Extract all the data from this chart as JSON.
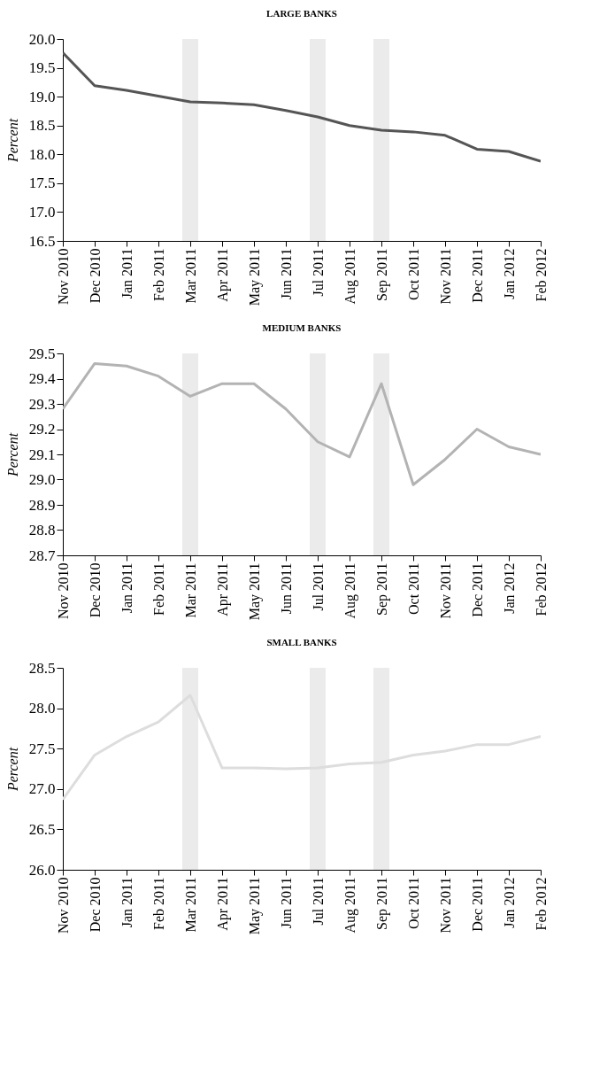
{
  "chart_data": [
    {
      "type": "line",
      "title": "LARGE BANKS",
      "ylabel": "Percent",
      "categories": [
        "Nov 2010",
        "Dec 2010",
        "Jan 2011",
        "Feb 2011",
        "Mar 2011",
        "Apr 2011",
        "May 2011",
        "Jun 2011",
        "Jul 2011",
        "Aug 2011",
        "Sep 2011",
        "Oct 2011",
        "Nov 2011",
        "Dec 2011",
        "Jan 2012",
        "Feb 2012"
      ],
      "series": [
        {
          "color": "#555555",
          "values": [
            19.76,
            19.19,
            19.11,
            19.01,
            18.91,
            18.89,
            18.86,
            18.76,
            18.65,
            18.5,
            18.42,
            18.39,
            18.33,
            18.09,
            18.05,
            17.88
          ]
        }
      ],
      "ylim": [
        16.5,
        20.0
      ],
      "yticks": [
        16.5,
        {
          "value": 17,
          "label": "17.0"
        },
        17.5,
        {
          "value": 18,
          "label": "18.0"
        },
        18.5,
        {
          "value": 19,
          "label": "19.0"
        },
        19.5,
        {
          "value": 20,
          "label": "20.0"
        }
      ],
      "bands": [
        {
          "axis": "x",
          "from": "Mar 2011",
          "to": "Mar 2011",
          "color": "#ebebeb"
        },
        {
          "axis": "x",
          "from": "Jul 2011",
          "to": "Jul 2011",
          "color": "#ebebeb"
        },
        {
          "axis": "x",
          "from": "Sep 2011",
          "to": "Sep 2011",
          "color": "#ebebeb"
        }
      ]
    },
    {
      "type": "line",
      "title": "MEDIUM BANKS",
      "ylabel": "Percent",
      "categories": [
        "Nov 2010",
        "Dec 2010",
        "Jan 2011",
        "Feb 2011",
        "Mar 2011",
        "Apr 2011",
        "May 2011",
        "Jun 2011",
        "Jul 2011",
        "Aug 2011",
        "Sep 2011",
        "Oct 2011",
        "Nov 2011",
        "Dec 2011",
        "Jan 2012",
        "Feb 2012"
      ],
      "series": [
        {
          "color": "#b3b3b3",
          "values": [
            29.28,
            29.46,
            29.45,
            29.41,
            29.33,
            29.38,
            29.38,
            29.28,
            29.15,
            29.09,
            29.38,
            28.98,
            29.08,
            29.2,
            29.13,
            29.1
          ]
        }
      ],
      "ylim": [
        28.7,
        29.5
      ],
      "yticks": [
        28.7,
        28.8,
        28.9,
        {
          "value": 29,
          "label": "29.0"
        },
        29.1,
        29.2,
        29.3,
        29.4,
        29.5
      ],
      "bands": [
        {
          "axis": "x",
          "from": "Mar 2011",
          "to": "Mar 2011",
          "color": "#ebebeb"
        },
        {
          "axis": "x",
          "from": "Jul 2011",
          "to": "Jul 2011",
          "color": "#ebebeb"
        },
        {
          "axis": "x",
          "from": "Sep 2011",
          "to": "Sep 2011",
          "color": "#ebebeb"
        }
      ]
    },
    {
      "type": "line",
      "title": "SMALL BANKS",
      "ylabel": "Percent",
      "categories": [
        "Nov 2010",
        "Dec 2010",
        "Jan 2011",
        "Feb 2011",
        "Mar 2011",
        "Apr 2011",
        "May 2011",
        "Jun 2011",
        "Jul 2011",
        "Aug 2011",
        "Sep 2011",
        "Oct 2011",
        "Nov 2011",
        "Dec 2011",
        "Jan 2012",
        "Feb 2012"
      ],
      "series": [
        {
          "color": "#dddddd",
          "values": [
            26.87,
            27.42,
            27.65,
            27.83,
            28.16,
            27.26,
            27.26,
            27.25,
            27.26,
            27.31,
            27.33,
            27.42,
            27.47,
            27.55,
            27.55,
            27.65
          ]
        }
      ],
      "ylim": [
        26.0,
        28.5
      ],
      "yticks": [
        {
          "value": 26,
          "label": "26.0"
        },
        26.5,
        {
          "value": 27,
          "label": "27.0"
        },
        27.5,
        {
          "value": 28,
          "label": "28.0"
        },
        28.5
      ],
      "bands": [
        {
          "axis": "x",
          "from": "Mar 2011",
          "to": "Mar 2011",
          "color": "#ebebeb"
        },
        {
          "axis": "x",
          "from": "Jul 2011",
          "to": "Jul 2011",
          "color": "#ebebeb"
        },
        {
          "axis": "x",
          "from": "Sep 2011",
          "to": "Sep 2011",
          "color": "#ebebeb"
        }
      ]
    }
  ]
}
